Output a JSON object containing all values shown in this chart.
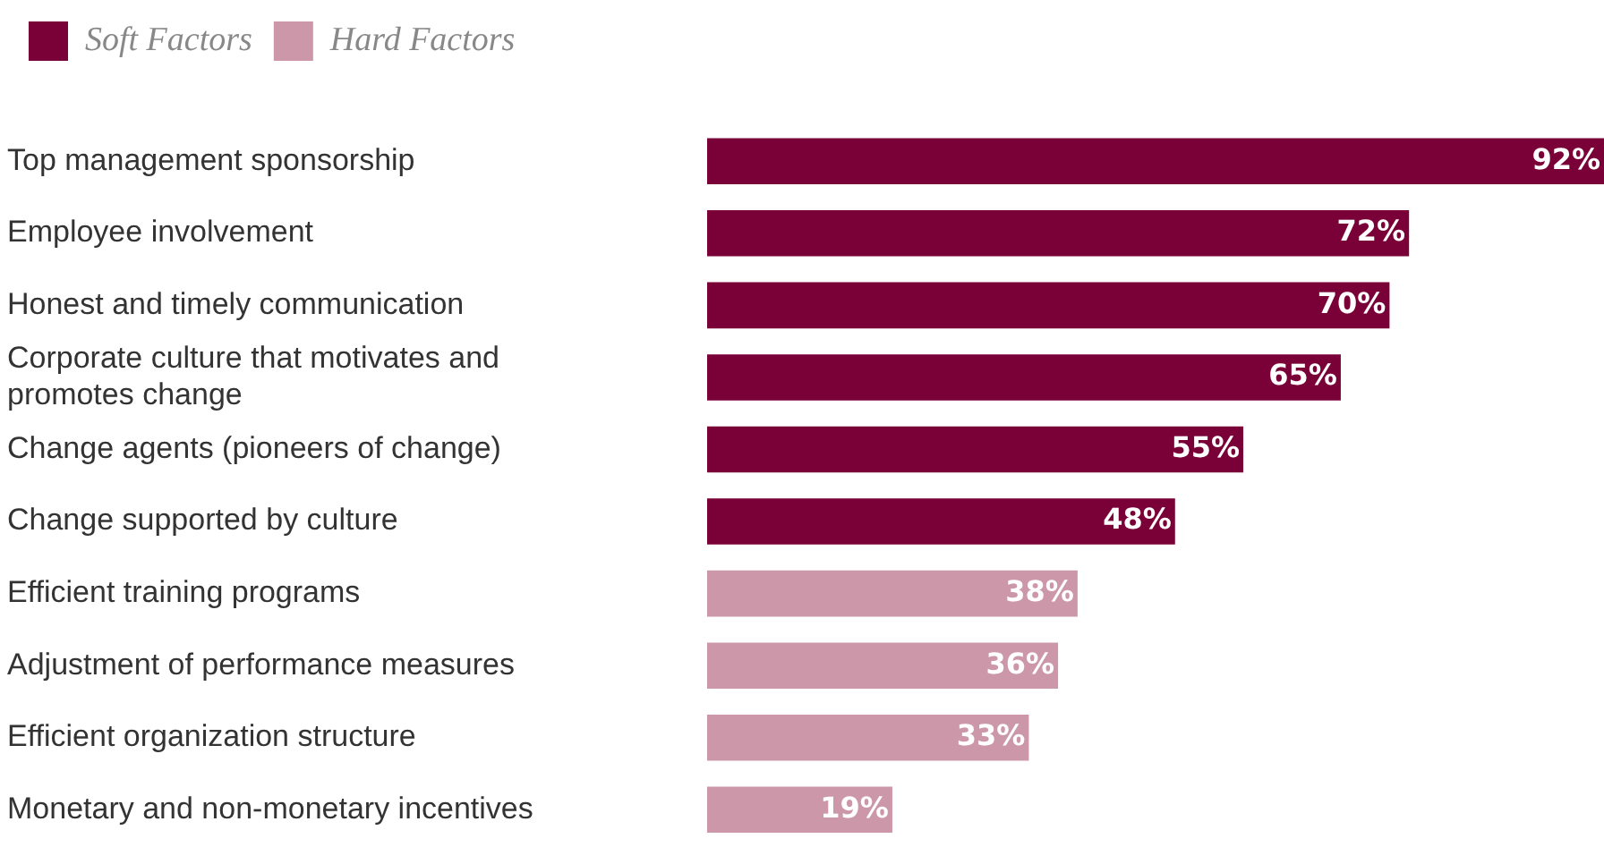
{
  "chart_data": {
    "type": "bar",
    "orientation": "horizontal",
    "stacked": true,
    "legend": "top left",
    "grid": false,
    "categories": [
      "Top management sponsorship",
      "Employee involvement",
      "Honest and timely communication",
      "Corporate culture that motivates and promotes change",
      "Change agents (pioneers of change)",
      "Change supported by culture",
      "Efficient training programs",
      "Adjustment of performance measures",
      "Efficient organization structure",
      "Monetary and non-monetary incentives"
    ],
    "series": [
      {
        "name": "Soft Factors",
        "color": "#7a0038",
        "values": [
          92,
          72,
          70,
          65,
          55,
          48,
          null,
          null,
          null,
          null
        ],
        "value_labels": [
          "92%",
          "72%",
          "70%",
          "65%",
          "55%",
          "48%",
          null,
          null,
          null,
          null
        ]
      },
      {
        "name": "Hard Factors",
        "color": "#cc97a8",
        "values": [
          null,
          null,
          null,
          null,
          null,
          null,
          38,
          36,
          33,
          19
        ],
        "value_labels": [
          null,
          null,
          null,
          null,
          null,
          null,
          "38%",
          "36%",
          "33%",
          "19%"
        ]
      }
    ]
  }
}
